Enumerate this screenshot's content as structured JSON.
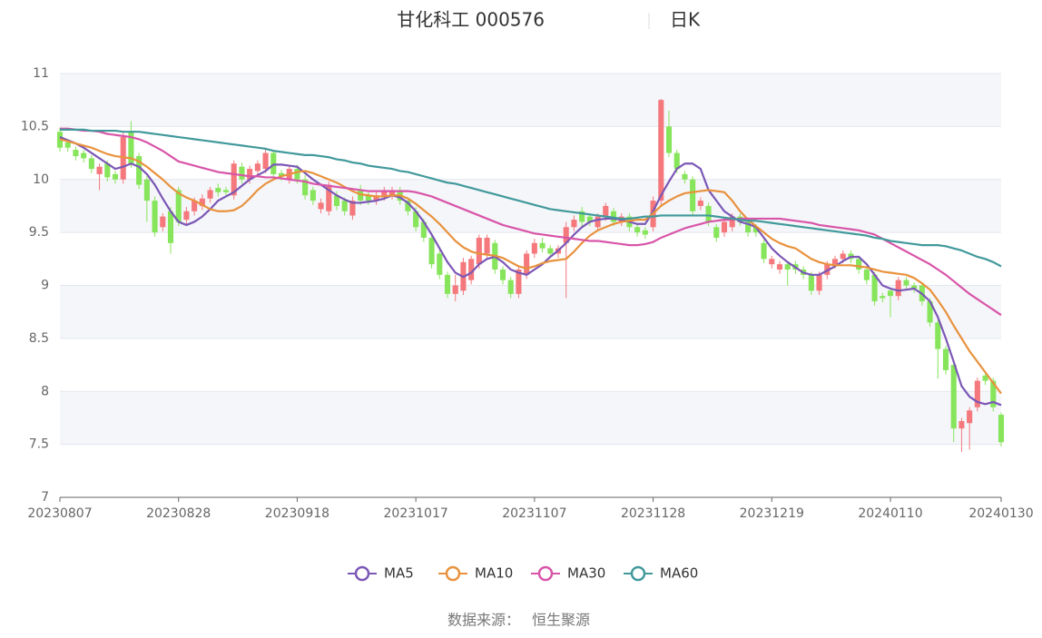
{
  "chart_data": {
    "type": "candlestick",
    "title": "甘化科工 000576",
    "period": "日K",
    "source_label": "数据来源：",
    "source": "恒生聚源",
    "categories": [
      "20230807",
      null,
      null,
      null,
      null,
      null,
      null,
      null,
      null,
      null,
      null,
      null,
      null,
      null,
      null,
      "20230828",
      null,
      null,
      null,
      null,
      null,
      null,
      null,
      null,
      null,
      null,
      null,
      null,
      null,
      null,
      "20230918",
      null,
      null,
      null,
      null,
      null,
      null,
      null,
      null,
      null,
      null,
      null,
      null,
      null,
      null,
      "20231017",
      null,
      null,
      null,
      null,
      null,
      null,
      null,
      null,
      null,
      null,
      null,
      null,
      null,
      null,
      "20231107",
      null,
      null,
      null,
      null,
      null,
      null,
      null,
      null,
      null,
      null,
      null,
      null,
      null,
      null,
      "20231128",
      null,
      null,
      null,
      null,
      null,
      null,
      null,
      null,
      null,
      null,
      null,
      null,
      null,
      null,
      "20231219",
      null,
      null,
      null,
      null,
      null,
      null,
      null,
      null,
      null,
      null,
      null,
      null,
      null,
      null,
      "20240110",
      null,
      null,
      null,
      null,
      null,
      null,
      null,
      null,
      null,
      null,
      null,
      null,
      null,
      "20240130"
    ],
    "open": [
      10.45,
      10.35,
      10.28,
      10.25,
      10.2,
      10.05,
      10.15,
      10.05,
      10.0,
      10.45,
      10.22,
      10.0,
      9.8,
      9.55,
      9.7,
      9.9,
      9.62,
      9.7,
      9.75,
      9.82,
      9.92,
      9.9,
      9.85,
      10.12,
      10.0,
      10.08,
      10.1,
      10.25,
      10.06,
      10.0,
      10.1,
      10.0,
      9.9,
      9.72,
      9.7,
      9.85,
      9.8,
      9.66,
      9.9,
      9.85,
      9.8,
      9.84,
      9.85,
      9.9,
      9.8,
      9.7,
      9.6,
      9.45,
      9.3,
      9.1,
      8.92,
      8.95,
      9.05,
      9.2,
      9.3,
      9.4,
      9.15,
      9.05,
      8.92,
      9.1,
      9.3,
      9.4,
      9.35,
      9.3,
      9.4,
      9.55,
      9.7,
      9.65,
      9.55,
      9.65,
      9.7,
      9.6,
      9.65,
      9.55,
      9.52,
      9.55,
      9.8,
      10.5,
      10.25,
      10.05,
      10.0,
      9.75,
      9.75,
      9.55,
      9.5,
      9.55,
      9.65,
      9.6,
      9.55,
      9.4,
      9.2,
      9.15,
      9.2,
      9.2,
      9.15,
      9.1,
      8.95,
      9.1,
      9.2,
      9.25,
      9.3,
      9.25,
      9.15,
      9.1,
      8.9,
      8.95,
      8.9,
      9.05,
      9.0,
      9.0,
      8.85,
      8.65,
      8.4,
      8.25,
      7.65,
      7.7,
      7.85,
      8.15,
      8.1,
      7.78
    ],
    "close": [
      10.3,
      10.3,
      10.22,
      10.2,
      10.1,
      10.12,
      10.02,
      10.0,
      10.4,
      10.15,
      9.95,
      9.8,
      9.5,
      9.65,
      9.4,
      9.6,
      9.7,
      9.8,
      9.82,
      9.9,
      9.88,
      9.88,
      10.15,
      10.0,
      10.1,
      10.15,
      10.25,
      10.05,
      10.03,
      10.1,
      10.0,
      9.85,
      9.8,
      9.78,
      9.95,
      9.75,
      9.7,
      9.8,
      9.8,
      9.8,
      9.85,
      9.9,
      9.9,
      9.8,
      9.7,
      9.55,
      9.45,
      9.2,
      9.1,
      8.92,
      9.0,
      9.22,
      9.25,
      9.45,
      9.45,
      9.15,
      9.05,
      8.92,
      9.15,
      9.3,
      9.4,
      9.35,
      9.3,
      9.35,
      9.55,
      9.62,
      9.6,
      9.6,
      9.65,
      9.75,
      9.6,
      9.65,
      9.55,
      9.5,
      9.48,
      9.8,
      10.75,
      10.25,
      10.1,
      10.0,
      9.7,
      9.8,
      9.6,
      9.45,
      9.6,
      9.65,
      9.6,
      9.5,
      9.5,
      9.25,
      9.25,
      9.2,
      9.15,
      9.15,
      9.1,
      8.95,
      9.1,
      9.2,
      9.25,
      9.3,
      9.25,
      9.15,
      9.05,
      8.85,
      8.88,
      8.9,
      9.05,
      9.0,
      8.97,
      8.85,
      8.65,
      8.4,
      8.2,
      7.65,
      7.72,
      7.82,
      8.1,
      8.1,
      7.85,
      7.52
    ],
    "high": [
      10.49,
      10.38,
      10.31,
      10.28,
      10.23,
      10.15,
      10.18,
      10.08,
      10.44,
      10.55,
      10.25,
      10.03,
      9.84,
      9.68,
      9.74,
      9.93,
      9.74,
      9.83,
      9.86,
      9.93,
      9.96,
      9.93,
      10.18,
      10.16,
      10.13,
      10.18,
      10.28,
      10.28,
      10.09,
      10.13,
      10.14,
      10.04,
      9.93,
      9.82,
      9.98,
      9.89,
      9.83,
      9.84,
      9.95,
      9.88,
      9.88,
      9.93,
      9.93,
      9.93,
      9.83,
      9.74,
      9.63,
      9.48,
      9.33,
      9.13,
      9.1,
      9.26,
      9.28,
      9.48,
      9.48,
      9.43,
      9.18,
      9.08,
      9.18,
      9.33,
      9.44,
      9.45,
      9.38,
      9.38,
      9.6,
      9.66,
      9.74,
      9.68,
      9.68,
      9.78,
      9.73,
      9.68,
      9.68,
      9.58,
      9.55,
      9.84,
      10.76,
      10.65,
      10.28,
      10.08,
      10.03,
      9.83,
      9.78,
      9.58,
      9.63,
      9.68,
      9.68,
      9.63,
      9.58,
      9.43,
      9.28,
      9.23,
      9.23,
      9.23,
      9.18,
      9.13,
      9.13,
      9.23,
      9.28,
      9.33,
      9.33,
      9.28,
      9.18,
      9.13,
      8.93,
      8.98,
      9.08,
      9.08,
      9.03,
      9.03,
      8.88,
      8.68,
      8.43,
      8.28,
      7.75,
      7.85,
      8.13,
      8.18,
      8.13,
      7.8
    ],
    "low": [
      10.26,
      10.26,
      10.18,
      10.16,
      10.06,
      9.9,
      9.98,
      9.96,
      9.96,
      10.11,
      9.91,
      9.6,
      9.46,
      9.51,
      9.3,
      9.56,
      9.58,
      9.66,
      9.71,
      9.78,
      9.84,
      9.84,
      9.81,
      9.96,
      9.96,
      10.04,
      10.06,
      10.01,
      9.99,
      9.96,
      9.96,
      9.81,
      9.76,
      9.68,
      9.66,
      9.71,
      9.66,
      9.62,
      9.76,
      9.76,
      9.76,
      9.8,
      9.81,
      9.76,
      9.66,
      9.51,
      9.41,
      9.16,
      9.06,
      8.88,
      8.85,
      8.91,
      9.01,
      9.16,
      9.26,
      9.11,
      9.01,
      8.88,
      8.88,
      9.06,
      9.26,
      9.31,
      9.26,
      9.26,
      8.88,
      9.51,
      9.56,
      9.56,
      9.51,
      9.61,
      9.56,
      9.56,
      9.51,
      9.46,
      9.44,
      9.51,
      9.76,
      10.21,
      10.06,
      9.96,
      9.66,
      9.71,
      9.56,
      9.41,
      9.46,
      9.51,
      9.56,
      9.46,
      9.46,
      9.21,
      9.16,
      9.11,
      9.0,
      9.11,
      9.06,
      8.91,
      8.91,
      9.06,
      9.16,
      9.21,
      9.21,
      9.11,
      9.01,
      8.81,
      8.84,
      8.7,
      8.86,
      8.96,
      8.93,
      8.81,
      8.61,
      8.12,
      8.16,
      7.52,
      7.43,
      7.45,
      7.81,
      8.06,
      7.81,
      7.48
    ],
    "up_color": "#f4787c",
    "down_color": "#86e55a",
    "series": [
      {
        "name": "MA5",
        "color": "#7b57b6",
        "values": [
          10.4,
          10.37,
          10.34,
          10.3,
          10.25,
          10.2,
          10.15,
          10.1,
          10.12,
          10.15,
          10.12,
          10.05,
          9.95,
          9.82,
          9.7,
          9.6,
          9.57,
          9.6,
          9.65,
          9.72,
          9.8,
          9.84,
          9.88,
          9.94,
          10.0,
          10.04,
          10.08,
          10.14,
          10.14,
          10.13,
          10.12,
          10.06,
          10.0,
          9.95,
          9.9,
          9.85,
          9.81,
          9.78,
          9.78,
          9.79,
          9.8,
          9.82,
          9.85,
          9.83,
          9.78,
          9.7,
          9.6,
          9.48,
          9.35,
          9.22,
          9.12,
          9.08,
          9.12,
          9.2,
          9.25,
          9.27,
          9.22,
          9.15,
          9.12,
          9.1,
          9.15,
          9.2,
          9.27,
          9.33,
          9.4,
          9.48,
          9.55,
          9.6,
          9.62,
          9.63,
          9.63,
          9.62,
          9.6,
          9.58,
          9.58,
          9.7,
          9.85,
          9.98,
          10.1,
          10.15,
          10.15,
          10.1,
          9.9,
          9.8,
          9.7,
          9.65,
          9.6,
          9.58,
          9.55,
          9.45,
          9.35,
          9.28,
          9.22,
          9.17,
          9.12,
          9.1,
          9.1,
          9.14,
          9.18,
          9.23,
          9.27,
          9.27,
          9.2,
          9.1,
          9.0,
          8.97,
          8.95,
          8.96,
          8.97,
          8.92,
          8.85,
          8.7,
          8.5,
          8.28,
          8.05,
          7.95,
          7.9,
          7.88,
          7.9,
          7.87
        ]
      },
      {
        "name": "MA10",
        "color": "#e8923d",
        "values": [
          10.38,
          10.36,
          10.34,
          10.32,
          10.3,
          10.27,
          10.24,
          10.22,
          10.21,
          10.2,
          10.17,
          10.12,
          10.06,
          10.0,
          9.93,
          9.87,
          9.83,
          9.8,
          9.76,
          9.72,
          9.7,
          9.7,
          9.71,
          9.75,
          9.82,
          9.9,
          9.96,
          10.0,
          10.03,
          10.05,
          10.07,
          10.08,
          10.06,
          10.03,
          10.0,
          9.97,
          9.93,
          9.89,
          9.86,
          9.85,
          9.84,
          9.84,
          9.85,
          9.85,
          9.82,
          9.77,
          9.71,
          9.65,
          9.58,
          9.5,
          9.42,
          9.36,
          9.32,
          9.3,
          9.29,
          9.28,
          9.26,
          9.22,
          9.18,
          9.16,
          9.18,
          9.21,
          9.23,
          9.24,
          9.25,
          9.32,
          9.4,
          9.47,
          9.52,
          9.55,
          9.58,
          9.6,
          9.61,
          9.62,
          9.62,
          9.68,
          9.75,
          9.8,
          9.84,
          9.87,
          9.88,
          9.89,
          9.9,
          9.89,
          9.88,
          9.8,
          9.7,
          9.62,
          9.56,
          9.5,
          9.44,
          9.4,
          9.37,
          9.35,
          9.3,
          9.25,
          9.22,
          9.2,
          9.19,
          9.19,
          9.19,
          9.18,
          9.17,
          9.15,
          9.13,
          9.12,
          9.11,
          9.1,
          9.07,
          9.02,
          8.96,
          8.86,
          8.75,
          8.62,
          8.5,
          8.38,
          8.28,
          8.18,
          8.08,
          7.98
        ]
      },
      {
        "name": "MA30",
        "color": "#d855a8",
        "values": [
          10.48,
          10.48,
          10.47,
          10.46,
          10.46,
          10.45,
          10.43,
          10.42,
          10.41,
          10.4,
          10.38,
          10.35,
          10.31,
          10.27,
          10.22,
          10.17,
          10.15,
          10.13,
          10.11,
          10.09,
          10.07,
          10.06,
          10.05,
          10.04,
          10.03,
          10.03,
          10.02,
          10.02,
          10.01,
          10.0,
          9.99,
          9.98,
          9.96,
          9.95,
          9.94,
          9.93,
          9.92,
          9.91,
          9.9,
          9.89,
          9.89,
          9.89,
          9.89,
          9.89,
          9.89,
          9.88,
          9.86,
          9.84,
          9.81,
          9.78,
          9.75,
          9.72,
          9.69,
          9.66,
          9.63,
          9.6,
          9.57,
          9.55,
          9.53,
          9.51,
          9.49,
          9.48,
          9.47,
          9.46,
          9.45,
          9.44,
          9.43,
          9.42,
          9.42,
          9.41,
          9.4,
          9.39,
          9.38,
          9.38,
          9.39,
          9.41,
          9.45,
          9.48,
          9.51,
          9.54,
          9.56,
          9.58,
          9.6,
          9.61,
          9.62,
          9.62,
          9.63,
          9.63,
          9.63,
          9.63,
          9.63,
          9.63,
          9.62,
          9.61,
          9.6,
          9.59,
          9.57,
          9.56,
          9.55,
          9.54,
          9.53,
          9.52,
          9.5,
          9.48,
          9.44,
          9.4,
          9.36,
          9.32,
          9.28,
          9.24,
          9.2,
          9.15,
          9.1,
          9.04,
          8.98,
          8.92,
          8.87,
          8.82,
          8.77,
          8.72
        ]
      },
      {
        "name": "MA60",
        "color": "#41999b",
        "values": [
          10.47,
          10.47,
          10.47,
          10.47,
          10.46,
          10.46,
          10.46,
          10.46,
          10.45,
          10.45,
          10.45,
          10.44,
          10.43,
          10.42,
          10.41,
          10.4,
          10.39,
          10.38,
          10.37,
          10.36,
          10.35,
          10.34,
          10.33,
          10.32,
          10.31,
          10.3,
          10.29,
          10.27,
          10.26,
          10.25,
          10.24,
          10.23,
          10.23,
          10.22,
          10.21,
          10.19,
          10.18,
          10.16,
          10.15,
          10.13,
          10.12,
          10.11,
          10.1,
          10.08,
          10.07,
          10.05,
          10.03,
          10.01,
          9.99,
          9.97,
          9.96,
          9.94,
          9.92,
          9.9,
          9.88,
          9.86,
          9.84,
          9.82,
          9.8,
          9.78,
          9.76,
          9.74,
          9.72,
          9.71,
          9.7,
          9.69,
          9.68,
          9.67,
          9.66,
          9.65,
          9.64,
          9.63,
          9.63,
          9.64,
          9.65,
          9.65,
          9.66,
          9.66,
          9.66,
          9.66,
          9.66,
          9.66,
          9.66,
          9.65,
          9.64,
          9.63,
          9.62,
          9.61,
          9.61,
          9.6,
          9.59,
          9.58,
          9.57,
          9.56,
          9.55,
          9.54,
          9.53,
          9.52,
          9.51,
          9.5,
          9.49,
          9.48,
          9.47,
          9.45,
          9.44,
          9.42,
          9.41,
          9.4,
          9.39,
          9.38,
          9.38,
          9.38,
          9.37,
          9.35,
          9.33,
          9.3,
          9.27,
          9.25,
          9.22,
          9.18
        ]
      }
    ],
    "ylim": [
      7,
      11
    ],
    "yticks": [
      7,
      7.5,
      8,
      8.5,
      9,
      9.5,
      10,
      10.5,
      11
    ],
    "grid": true,
    "legend": "bottom"
  }
}
